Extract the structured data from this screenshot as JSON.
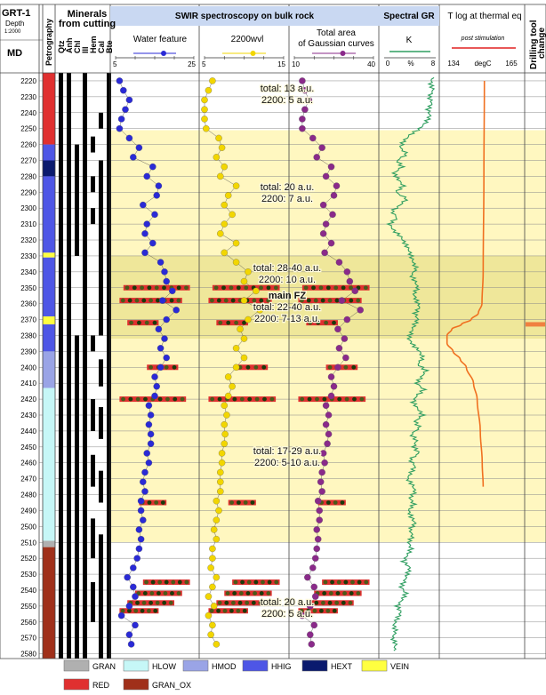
{
  "header": {
    "well": "GRT-1",
    "depth_label": "Depth",
    "scale": "1:2000",
    "md": "MD",
    "petrography": "Petrography",
    "minerals_title_1": "Minerals",
    "minerals_title_2": "from cutting",
    "mineral_names": [
      "Qtz",
      "Anh",
      "Chl",
      "Ill",
      "Hem",
      "Cal",
      "Bte"
    ],
    "swir_title": "SWIR spectroscopy on bulk rock",
    "water_feature": "Water feature",
    "wvl_2200": "2200wvl",
    "total_area_1": "Total area",
    "total_area_2": "of Gaussian curves",
    "spectral_gr": "Spectral GR",
    "k_label": "K",
    "gr_ticks": [
      "0",
      "%",
      "8"
    ],
    "tlog_title": "T log at thermal eq",
    "post_stim": "post stimulation",
    "tlog_ticks": [
      "134",
      "degC",
      "165"
    ],
    "drilling_1": "Drilling tool",
    "drilling_2": "change"
  },
  "colors": {
    "water": "#2a2ad6",
    "wvl": "#f2d600",
    "total": "#8a2a8a",
    "gr_line": "#2e9e60",
    "t_line": "#f07020",
    "highlight": "#fff7c0",
    "highlight_strong": "#efe79a",
    "drilling": "#f08040",
    "axis_header": "#c9d8f2"
  },
  "legend": [
    {
      "label": "GRAN",
      "color": "#b0b0b0"
    },
    {
      "label": "HLOW",
      "color": "#c6f7f7"
    },
    {
      "label": "HMOD",
      "color": "#9aa4e6"
    },
    {
      "label": "HHIG",
      "color": "#4e56e6"
    },
    {
      "label": "HEXT",
      "color": "#0a1a6e"
    },
    {
      "label": "VEIN",
      "color": "#ffff40"
    },
    {
      "label": "RED",
      "color": "#e03030"
    },
    {
      "label": "GRAN_OX",
      "color": "#a0301a"
    }
  ],
  "annotations": [
    {
      "depth": 2228,
      "lines": [
        "total: 13 a.u.",
        "2200: 5 a.u."
      ],
      "bold": false
    },
    {
      "depth": 2290,
      "lines": [
        "total: 20 a.u.",
        "2200: 7 a.u."
      ],
      "bold": false
    },
    {
      "depth": 2341,
      "lines": [
        "total: 28-40 a.u.",
        "2200: 10 a.u."
      ],
      "bold": false
    },
    {
      "depth": 2362,
      "lines": [
        "main FZ",
        "total: 22-40 a.u.",
        "2200: 7-13 a.u."
      ],
      "bold": true
    },
    {
      "depth": 2456,
      "lines": [
        "total: 17-29 a.u.",
        "2200: 5-10 a.u."
      ],
      "bold": false
    },
    {
      "depth": 2551,
      "lines": [
        "total: 20 a.u.",
        "2200: 5 a.u."
      ],
      "bold": false
    }
  ],
  "chart_data": {
    "type": "line",
    "y_axis": {
      "label": "MD",
      "range": [
        2215,
        2583
      ],
      "ticks_step": 10,
      "first_tick": 2220,
      "last_tick": 2580,
      "inverted": true
    },
    "highlight_zones": [
      {
        "from": 2251,
        "to": 2510,
        "style": "light"
      },
      {
        "from": 2330,
        "to": 2382,
        "style": "strong"
      }
    ],
    "petrography": [
      {
        "from": 2215,
        "to": 2260,
        "lith": "RED"
      },
      {
        "from": 2260,
        "to": 2270,
        "lith": "HHIG"
      },
      {
        "from": 2270,
        "to": 2280,
        "lith": "HEXT"
      },
      {
        "from": 2280,
        "to": 2328,
        "lith": "HHIG"
      },
      {
        "from": 2328,
        "to": 2331,
        "lith": "VEIN"
      },
      {
        "from": 2331,
        "to": 2368,
        "lith": "HHIG"
      },
      {
        "from": 2368,
        "to": 2373,
        "lith": "VEIN"
      },
      {
        "from": 2373,
        "to": 2390,
        "lith": "HHIG"
      },
      {
        "from": 2390,
        "to": 2413,
        "lith": "HMOD"
      },
      {
        "from": 2413,
        "to": 2509,
        "lith": "HLOW"
      },
      {
        "from": 2509,
        "to": 2513,
        "lith": "GRAN"
      },
      {
        "from": 2513,
        "to": 2583,
        "lith": "GRAN_OX"
      }
    ],
    "minerals": {
      "names": [
        "Qtz",
        "Anh",
        "Chl",
        "Ill",
        "Hem",
        "Cal",
        "Bte"
      ],
      "presence": [
        [
          [
            2215,
            2583
          ]
        ],
        [
          [
            2215,
            2583
          ]
        ],
        [
          [
            2260,
            2330
          ],
          [
            2380,
            2583
          ]
        ],
        [
          [
            2215,
            2583
          ]
        ],
        [
          [
            2255,
            2265
          ],
          [
            2280,
            2290
          ],
          [
            2300,
            2310
          ],
          [
            2380,
            2390
          ],
          [
            2420,
            2440
          ],
          [
            2455,
            2475
          ],
          [
            2495,
            2520
          ],
          [
            2535,
            2560
          ]
        ],
        [
          [
            2240,
            2250
          ],
          [
            2270,
            2380
          ],
          [
            2395,
            2412
          ],
          [
            2425,
            2445
          ],
          [
            2465,
            2485
          ],
          [
            2505,
            2583
          ]
        ],
        [
          [
            2215,
            2583
          ]
        ]
      ]
    },
    "tracks": [
      {
        "name": "Water feature",
        "xlim": [
          5,
          25
        ],
        "x_ticks": [
          "5",
          "25"
        ],
        "marker_color": "#2a2ad6",
        "depths": [
          2220,
          2226,
          2232,
          2238,
          2244,
          2250,
          2256,
          2262,
          2268,
          2274,
          2280,
          2286,
          2292,
          2298,
          2304,
          2310,
          2316,
          2322,
          2328,
          2334,
          2340,
          2346,
          2352,
          2358,
          2364,
          2370,
          2376,
          2382,
          2388,
          2394,
          2400,
          2406,
          2412,
          2418,
          2424,
          2430,
          2436,
          2442,
          2448,
          2454,
          2460,
          2466,
          2472,
          2478,
          2484,
          2490,
          2496,
          2502,
          2508,
          2514,
          2520,
          2526,
          2532,
          2538,
          2544,
          2550,
          2556,
          2562,
          2568,
          2574
        ],
        "values": [
          6.0,
          7.0,
          8.5,
          7.5,
          6.5,
          6.0,
          8.5,
          11.0,
          9.5,
          14.5,
          13.0,
          16.0,
          15.5,
          12.0,
          15.0,
          13.0,
          12.5,
          14.5,
          12.5,
          16.5,
          17.5,
          18.0,
          19.5,
          17.0,
          20.5,
          18.0,
          16.0,
          17.5,
          16.5,
          18.0,
          16.5,
          15.0,
          15.5,
          15.0,
          13.5,
          14.0,
          13.5,
          14.0,
          14.0,
          13.0,
          13.5,
          12.5,
          12.0,
          12.5,
          11.5,
          11.5,
          12.0,
          11.0,
          11.5,
          11.0,
          10.5,
          9.5,
          8.0,
          9.5,
          10.0,
          8.5,
          6.5,
          10.0,
          8.5,
          9.0
        ]
      },
      {
        "name": "2200wvl",
        "xlim": [
          5,
          15
        ],
        "x_ticks": [
          "5",
          "15"
        ],
        "marker_color": "#f2d600",
        "depths": [
          2220,
          2226,
          2232,
          2238,
          2244,
          2250,
          2256,
          2262,
          2268,
          2274,
          2280,
          2286,
          2292,
          2298,
          2304,
          2310,
          2316,
          2322,
          2328,
          2334,
          2340,
          2346,
          2352,
          2358,
          2364,
          2370,
          2376,
          2382,
          2388,
          2394,
          2400,
          2406,
          2412,
          2418,
          2424,
          2430,
          2436,
          2442,
          2448,
          2454,
          2460,
          2466,
          2472,
          2478,
          2484,
          2490,
          2496,
          2502,
          2508,
          2514,
          2520,
          2526,
          2532,
          2538,
          2544,
          2550,
          2556,
          2562,
          2568,
          2574
        ],
        "values": [
          6.0,
          5.5,
          5.0,
          5.0,
          5.0,
          5.2,
          6.8,
          7.2,
          6.5,
          7.5,
          7.0,
          9.0,
          8.0,
          7.5,
          8.5,
          7.5,
          7.0,
          9.0,
          7.5,
          9.0,
          10.5,
          10.0,
          11.5,
          10.0,
          12.0,
          10.5,
          9.5,
          10.0,
          9.0,
          10.0,
          9.0,
          8.0,
          8.5,
          8.0,
          7.5,
          7.8,
          7.5,
          7.6,
          7.5,
          7.2,
          7.2,
          7.0,
          7.0,
          7.0,
          6.5,
          6.8,
          6.5,
          6.2,
          6.5,
          6.0,
          6.0,
          5.8,
          6.5,
          6.0,
          5.5,
          6.2,
          5.5,
          6.0,
          5.8,
          6.5
        ]
      },
      {
        "name": "Total area",
        "xlim": [
          10,
          40
        ],
        "x_ticks": [
          "10",
          "40"
        ],
        "marker_color": "#8a2a8a",
        "depths": [
          2220,
          2226,
          2232,
          2238,
          2244,
          2250,
          2256,
          2262,
          2268,
          2274,
          2280,
          2286,
          2292,
          2298,
          2304,
          2310,
          2316,
          2322,
          2328,
          2334,
          2340,
          2346,
          2352,
          2358,
          2364,
          2370,
          2376,
          2382,
          2388,
          2394,
          2400,
          2406,
          2412,
          2418,
          2424,
          2430,
          2436,
          2442,
          2448,
          2454,
          2460,
          2466,
          2472,
          2478,
          2484,
          2490,
          2496,
          2502,
          2508,
          2514,
          2520,
          2526,
          2532,
          2538,
          2544,
          2550,
          2556,
          2562,
          2568,
          2574
        ],
        "values": [
          13.0,
          14.0,
          15.5,
          14.0,
          13.0,
          13.0,
          17.0,
          20.5,
          18.5,
          24.0,
          22.0,
          26.0,
          25.0,
          21.0,
          24.5,
          22.0,
          21.0,
          24.0,
          21.5,
          27.0,
          30.0,
          31.0,
          33.0,
          28.0,
          35.0,
          30.0,
          26.5,
          29.0,
          27.0,
          29.5,
          26.5,
          24.0,
          25.0,
          24.0,
          22.0,
          23.0,
          22.0,
          23.0,
          22.5,
          21.0,
          21.5,
          20.5,
          20.0,
          20.5,
          19.0,
          19.5,
          19.5,
          18.5,
          19.0,
          18.5,
          18.0,
          17.0,
          15.0,
          17.5,
          18.0,
          16.0,
          13.0,
          17.5,
          16.0,
          16.5
        ]
      }
    ],
    "fracture_bars": [
      {
        "depth": 2350,
        "from": 0.1,
        "to": 0.95
      },
      {
        "depth": 2358,
        "from": 0.05,
        "to": 0.85
      },
      {
        "depth": 2372,
        "from": 0.15,
        "to": 0.55
      },
      {
        "depth": 2400,
        "from": 0.4,
        "to": 0.8
      },
      {
        "depth": 2420,
        "from": 0.05,
        "to": 0.9
      },
      {
        "depth": 2485,
        "from": 0.3,
        "to": 0.65
      },
      {
        "depth": 2535,
        "from": 0.35,
        "to": 0.95
      },
      {
        "depth": 2542,
        "from": 0.25,
        "to": 0.85
      },
      {
        "depth": 2548,
        "from": 0.15,
        "to": 0.75
      },
      {
        "depth": 2553,
        "from": 0.05,
        "to": 0.55
      }
    ],
    "gr_k": {
      "name": "K",
      "xlim": [
        0,
        8
      ],
      "x_ticks": [
        "0",
        "%",
        "8"
      ],
      "depths": [
        2218,
        2222,
        2226,
        2230,
        2234,
        2238,
        2242,
        2246,
        2250,
        2254,
        2258,
        2262,
        2266,
        2270,
        2274,
        2278,
        2282,
        2286,
        2290,
        2294,
        2298,
        2302,
        2306,
        2310,
        2314,
        2318,
        2322,
        2326,
        2330,
        2334,
        2338,
        2342,
        2346,
        2350,
        2354,
        2358,
        2362,
        2366,
        2370,
        2374,
        2378,
        2382,
        2386,
        2390,
        2394,
        2398,
        2402,
        2406,
        2410,
        2414,
        2418,
        2422,
        2426,
        2430,
        2434,
        2438,
        2442,
        2446,
        2450,
        2454,
        2458,
        2462,
        2466,
        2470,
        2474,
        2478,
        2482,
        2486,
        2490,
        2494,
        2498,
        2502,
        2506,
        2510,
        2514,
        2518,
        2522,
        2526,
        2530,
        2534,
        2538,
        2542,
        2546,
        2550,
        2554,
        2558,
        2562,
        2566,
        2570,
        2574,
        2578
      ],
      "values": [
        7.5,
        7.2,
        7.6,
        7.0,
        7.4,
        6.8,
        7.1,
        6.5,
        5.5,
        4.0,
        3.0,
        2.5,
        3.5,
        2.0,
        2.8,
        1.5,
        2.2,
        3.0,
        1.8,
        3.5,
        2.5,
        1.2,
        2.0,
        0.8,
        1.5,
        2.6,
        3.2,
        3.8,
        4.2,
        4.5,
        5.0,
        4.2,
        4.8,
        5.2,
        4.6,
        5.0,
        5.5,
        4.8,
        5.2,
        4.6,
        4.2,
        3.8,
        4.5,
        5.5,
        6.0,
        5.2,
        6.5,
        5.8,
        5.0,
        6.2,
        5.0,
        4.5,
        5.2,
        6.0,
        4.8,
        5.5,
        4.2,
        5.0,
        4.6,
        5.4,
        4.0,
        4.8,
        4.2,
        3.6,
        4.4,
        4.8,
        4.0,
        4.6,
        3.8,
        4.2,
        4.8,
        4.0,
        4.4,
        3.8,
        4.2,
        3.6,
        3.0,
        4.0,
        3.6,
        3.2,
        2.6,
        3.4,
        2.8,
        2.0,
        2.6,
        2.0,
        1.5,
        1.8,
        1.3,
        1.8,
        1.5
      ]
    },
    "t_log": {
      "name": "post stimulation",
      "xlim": [
        134,
        165
      ],
      "x_ticks": [
        "134",
        "degC",
        "165"
      ],
      "depths": [
        2220,
        2280,
        2340,
        2360,
        2366,
        2370,
        2373,
        2376,
        2380,
        2385,
        2390,
        2395,
        2400,
        2410,
        2420,
        2440,
        2460,
        2475
      ],
      "values": [
        150.5,
        150.3,
        150.0,
        149.5,
        148.0,
        145.0,
        141.0,
        137.0,
        135.0,
        135.0,
        137.5,
        140.5,
        143.0,
        146.0,
        147.5,
        148.8,
        149.6,
        150.0
      ]
    },
    "drilling_tool_change": [
      {
        "depth": 2373
      }
    ]
  }
}
